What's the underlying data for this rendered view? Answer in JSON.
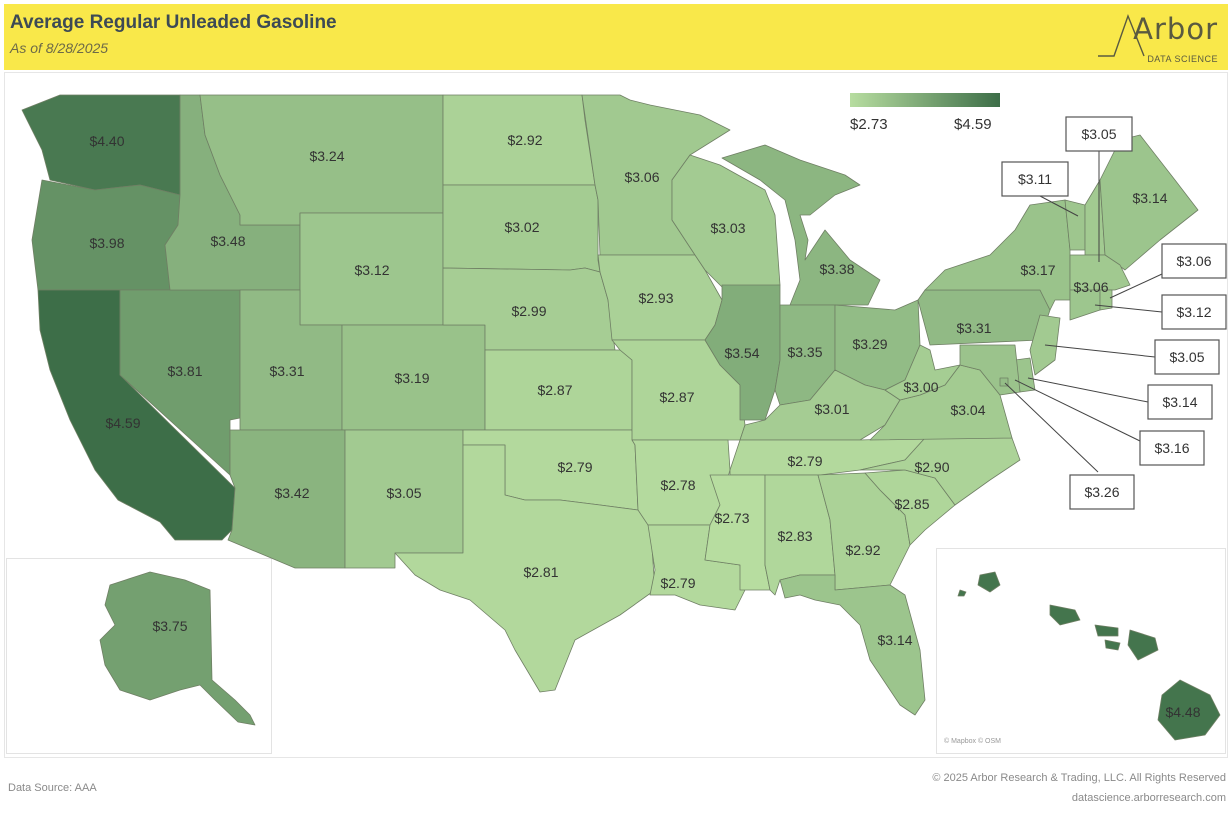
{
  "header": {
    "title": "Average Regular Unleaded Gasoline",
    "subtitle": "As of 8/28/2025"
  },
  "logo": {
    "name": "Arbor",
    "tagline": "DATA SCIENCE"
  },
  "legend": {
    "min_label": "$2.73",
    "max_label": "$4.59",
    "min_value": 2.73,
    "max_value": 4.59,
    "color_low": "#b7dda0",
    "color_high": "#3d6e48"
  },
  "states": [
    {
      "code": "WA",
      "value": 4.4,
      "label": "$4.40"
    },
    {
      "code": "OR",
      "value": 3.98,
      "label": "$3.98"
    },
    {
      "code": "CA",
      "value": 4.59,
      "label": "$4.59"
    },
    {
      "code": "NV",
      "value": 3.81,
      "label": "$3.81"
    },
    {
      "code": "ID",
      "value": 3.48,
      "label": "$3.48"
    },
    {
      "code": "MT",
      "value": 3.24,
      "label": "$3.24"
    },
    {
      "code": "WY",
      "value": 3.12,
      "label": "$3.12"
    },
    {
      "code": "UT",
      "value": 3.31,
      "label": "$3.31"
    },
    {
      "code": "CO",
      "value": 3.19,
      "label": "$3.19"
    },
    {
      "code": "AZ",
      "value": 3.42,
      "label": "$3.42"
    },
    {
      "code": "NM",
      "value": 3.05,
      "label": "$3.05"
    },
    {
      "code": "ND",
      "value": 2.92,
      "label": "$2.92"
    },
    {
      "code": "SD",
      "value": 3.02,
      "label": "$3.02"
    },
    {
      "code": "NE",
      "value": 2.99,
      "label": "$2.99"
    },
    {
      "code": "KS",
      "value": 2.87,
      "label": "$2.87"
    },
    {
      "code": "OK",
      "value": 2.79,
      "label": "$2.79"
    },
    {
      "code": "TX",
      "value": 2.81,
      "label": "$2.81"
    },
    {
      "code": "MN",
      "value": 3.06,
      "label": "$3.06"
    },
    {
      "code": "IA",
      "value": 2.93,
      "label": "$2.93"
    },
    {
      "code": "MO",
      "value": 2.87,
      "label": "$2.87"
    },
    {
      "code": "AR",
      "value": 2.78,
      "label": "$2.78"
    },
    {
      "code": "LA",
      "value": 2.79,
      "label": "$2.79"
    },
    {
      "code": "WI",
      "value": 3.03,
      "label": "$3.03"
    },
    {
      "code": "IL",
      "value": 3.54,
      "label": "$3.54"
    },
    {
      "code": "MI",
      "value": 3.38,
      "label": "$3.38"
    },
    {
      "code": "IN",
      "value": 3.35,
      "label": "$3.35"
    },
    {
      "code": "OH",
      "value": 3.29,
      "label": "$3.29"
    },
    {
      "code": "KY",
      "value": 3.01,
      "label": "$3.01"
    },
    {
      "code": "TN",
      "value": 2.79,
      "label": "$2.79"
    },
    {
      "code": "MS",
      "value": 2.73,
      "label": "$2.73"
    },
    {
      "code": "AL",
      "value": 2.83,
      "label": "$2.83"
    },
    {
      "code": "GA",
      "value": 2.92,
      "label": "$2.92"
    },
    {
      "code": "FL",
      "value": 3.14,
      "label": "$3.14"
    },
    {
      "code": "SC",
      "value": 2.85,
      "label": "$2.85"
    },
    {
      "code": "NC",
      "value": 2.9,
      "label": "$2.90"
    },
    {
      "code": "VA",
      "value": 3.04,
      "label": "$3.04"
    },
    {
      "code": "WV",
      "value": 3.0,
      "label": "$3.00"
    },
    {
      "code": "PA",
      "value": 3.31,
      "label": "$3.31"
    },
    {
      "code": "NY",
      "value": 3.17,
      "label": "$3.17"
    },
    {
      "code": "ME",
      "value": 3.14,
      "label": "$3.14"
    },
    {
      "code": "MA",
      "value": 3.06,
      "label": "$3.06"
    },
    {
      "code": "AK",
      "value": 3.75,
      "label": "$3.75"
    },
    {
      "code": "HI",
      "value": 4.48,
      "label": "$4.48"
    },
    {
      "code": "VT",
      "value": 3.11,
      "label": "$3.11"
    },
    {
      "code": "NH",
      "value": 3.05,
      "label": "$3.05"
    },
    {
      "code": "RI",
      "value": 3.06,
      "label": "$3.06"
    },
    {
      "code": "CT",
      "value": 3.12,
      "label": "$3.12"
    },
    {
      "code": "NJ",
      "value": 3.05,
      "label": "$3.05"
    },
    {
      "code": "DE",
      "value": 3.14,
      "label": "$3.14"
    },
    {
      "code": "MD",
      "value": 3.16,
      "label": "$3.16"
    },
    {
      "code": "DC",
      "value": 3.26,
      "label": "$3.26"
    }
  ],
  "attribution": "© Mapbox © OSM",
  "footer": {
    "source": "Data Source: AAA",
    "copyright": "© 2025 Arbor Research & Trading, LLC. All Rights Reserved",
    "website": "datascience.arborresearch.com"
  }
}
